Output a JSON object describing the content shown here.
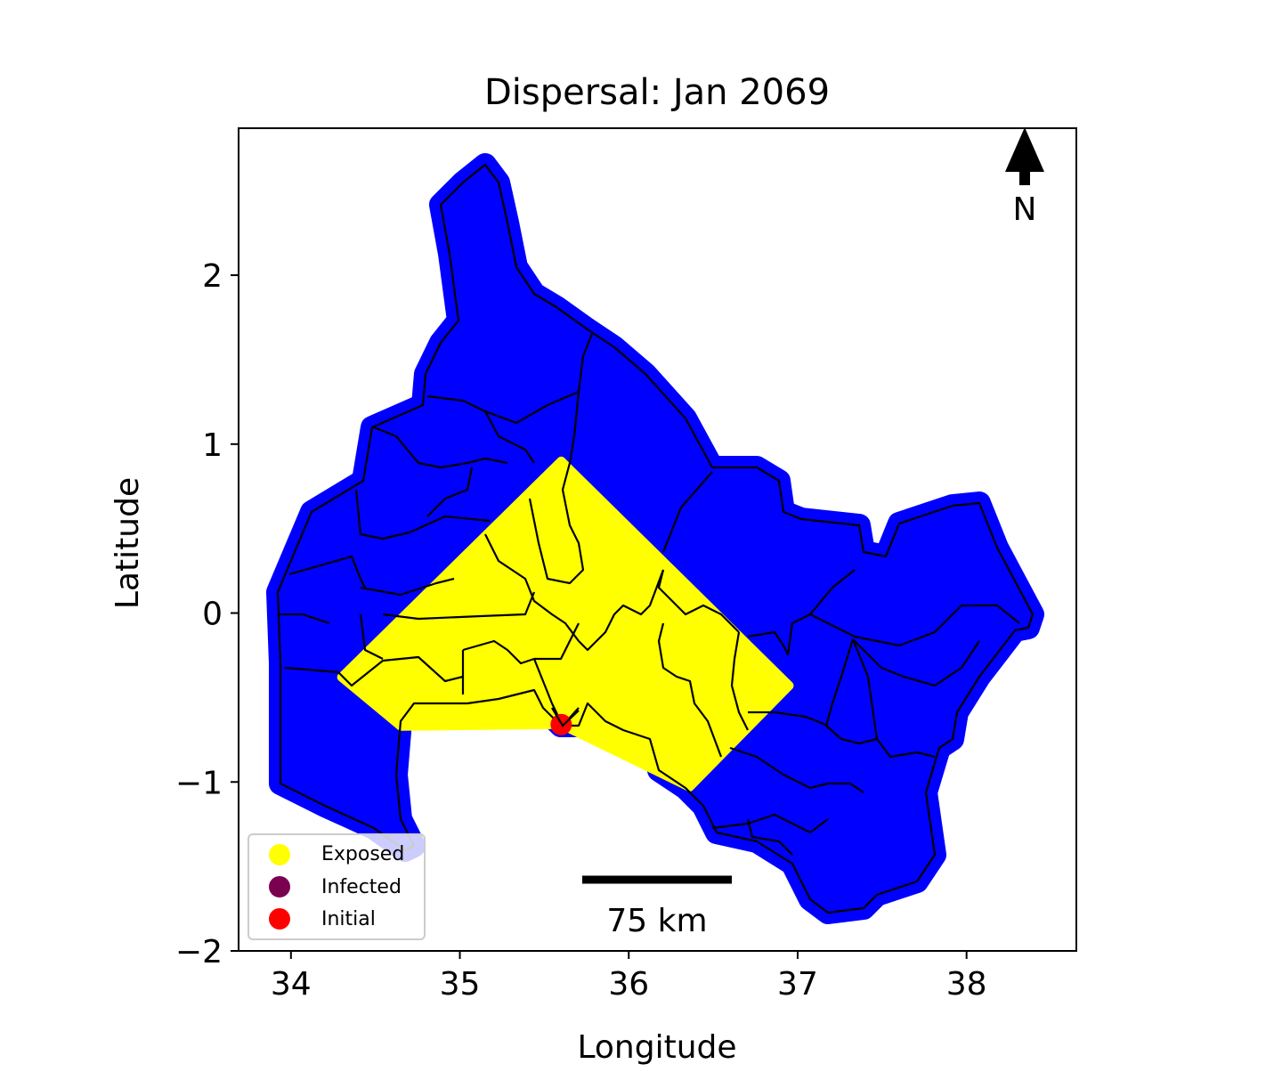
{
  "title": "Dispersal: Jan 2069",
  "axes": {
    "xlabel": "Longitude",
    "ylabel": "Latitude",
    "xlim": [
      33.69,
      38.65
    ],
    "ylim": [
      -2.0,
      2.87
    ],
    "xticks": [
      {
        "value": 34,
        "label": "34"
      },
      {
        "value": 35,
        "label": "35"
      },
      {
        "value": 36,
        "label": "36"
      },
      {
        "value": 37,
        "label": "37"
      },
      {
        "value": 38,
        "label": "38"
      }
    ],
    "yticks": [
      {
        "value": 2,
        "label": "2"
      },
      {
        "value": 1,
        "label": "1"
      },
      {
        "value": 0,
        "label": "0"
      },
      {
        "value": -1,
        "label": "−1"
      },
      {
        "value": -2,
        "label": "−2"
      }
    ]
  },
  "north_arrow": {
    "label": "N"
  },
  "scale_bar": {
    "label": "75 km"
  },
  "legend": {
    "placement": "lower-left",
    "items": [
      {
        "label": "Exposed",
        "color": "#ffff00"
      },
      {
        "label": "Infected",
        "color": "#7a0050"
      },
      {
        "label": "Initial",
        "color": "#ff0000"
      }
    ]
  },
  "colors": {
    "region_fill": "#0000ff",
    "exposed": "#ffff00",
    "infected": "#7a0050",
    "initial": "#ff0000",
    "borders": "#000000"
  },
  "map_data": {
    "initial_point": {
      "lon": 35.6,
      "lat": -0.66
    },
    "exposed_zone": [
      [
        35.6,
        0.9
      ],
      [
        36.95,
        -0.43
      ],
      [
        36.36,
        -1.03
      ],
      [
        35.6,
        -0.66
      ],
      [
        34.65,
        -0.67
      ],
      [
        34.3,
        -0.38
      ]
    ]
  }
}
